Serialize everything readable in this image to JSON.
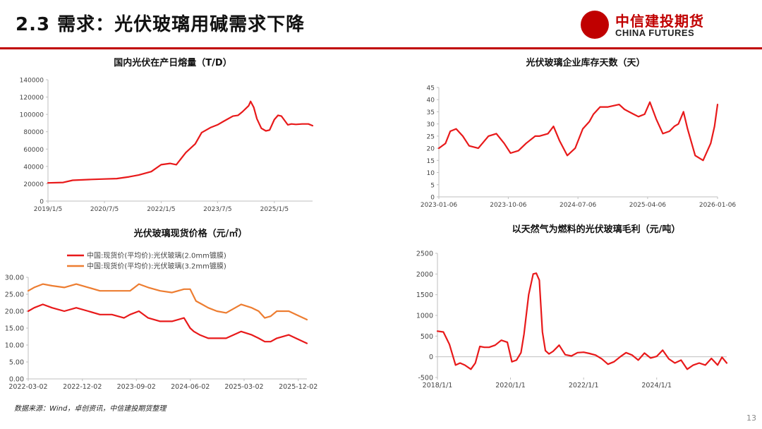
{
  "header": {
    "title": "2.3 需求：光伏玻璃用碱需求下降",
    "logo_cn": "中信建投期货",
    "logo_en": "CHINA FUTURES"
  },
  "colors": {
    "accent": "#c00000",
    "red_line": "#e8191a",
    "orange_line": "#ed7d31"
  },
  "footer": {
    "source": "数据来源：Wind，卓创资讯，中信建投期货整理",
    "page_number": "13"
  },
  "chart_data": [
    {
      "id": "c1",
      "type": "line",
      "title": "国内光伏在产日熔量（T/D）",
      "x_tick_labels": [
        "2019/1/5",
        "2020/7/5",
        "2022/1/5",
        "2023/7/5",
        "2025/1/5"
      ],
      "x_tick_dates": [
        "2019-01-05",
        "2020-07-05",
        "2022-01-05",
        "2023-07-05",
        "2025-01-05"
      ],
      "x_range": [
        "2019-01-05",
        "2026-01-10"
      ],
      "ylim": [
        0,
        140000
      ],
      "y_ticks": [
        0,
        20000,
        40000,
        60000,
        80000,
        100000,
        120000,
        140000
      ],
      "grid": false,
      "series": [
        {
          "color": "#e8191a",
          "x": [
            "2019-01-05",
            "2019-06-01",
            "2019-09-01",
            "2020-03-01",
            "2020-07-01",
            "2020-11-01",
            "2021-03-01",
            "2021-06-01",
            "2021-10-01",
            "2022-01-05",
            "2022-04-01",
            "2022-06-01",
            "2022-09-01",
            "2022-12-01",
            "2023-02-01",
            "2023-05-01",
            "2023-07-05",
            "2023-09-01",
            "2023-12-01",
            "2024-01-20",
            "2024-03-01",
            "2024-05-01",
            "2024-05-20",
            "2024-06-20",
            "2024-07-20",
            "2024-09-01",
            "2024-10-15",
            "2024-11-20",
            "2025-01-05",
            "2025-02-10",
            "2025-03-15",
            "2025-05-15",
            "2025-06-20",
            "2025-08-01",
            "2025-10-01",
            "2025-12-01",
            "2026-01-10"
          ],
          "y": [
            21000,
            21500,
            24000,
            25000,
            25500,
            26000,
            28000,
            30000,
            34000,
            42000,
            43500,
            42000,
            56000,
            66000,
            79000,
            85000,
            88000,
            92000,
            98000,
            99000,
            103000,
            110000,
            115000,
            108000,
            95000,
            84000,
            81000,
            82000,
            94000,
            99000,
            98000,
            88000,
            89000,
            88500,
            89000,
            89000,
            87000
          ]
        }
      ]
    },
    {
      "id": "c2",
      "type": "line",
      "title": "光伏玻璃企业库存天数（天）",
      "x_tick_labels": [
        "2023-01-06",
        "2023-10-06",
        "2024-07-06",
        "2025-04-06",
        "2026-01-06"
      ],
      "x_tick_dates": [
        "2023-01-06",
        "2023-10-06",
        "2024-07-06",
        "2025-04-06",
        "2026-01-06"
      ],
      "x_range": [
        "2023-01-06",
        "2026-01-06"
      ],
      "ylim": [
        0,
        45
      ],
      "y_ticks": [
        0,
        5,
        10,
        15,
        20,
        25,
        30,
        35,
        40,
        45
      ],
      "grid": false,
      "series": [
        {
          "color": "#e8191a",
          "x": [
            "2023-01-06",
            "2023-02-01",
            "2023-02-20",
            "2023-03-15",
            "2023-04-10",
            "2023-05-05",
            "2023-06-10",
            "2023-07-20",
            "2023-08-20",
            "2023-09-20",
            "2023-10-15",
            "2023-11-15",
            "2023-12-15",
            "2024-01-20",
            "2024-02-05",
            "2024-03-10",
            "2024-04-01",
            "2024-04-25",
            "2024-05-25",
            "2024-06-25",
            "2024-07-25",
            "2024-08-20",
            "2024-09-05",
            "2024-10-01",
            "2024-11-01",
            "2024-12-15",
            "2025-01-05",
            "2025-02-10",
            "2025-03-01",
            "2025-03-25",
            "2025-04-15",
            "2025-05-10",
            "2025-06-05",
            "2025-07-01",
            "2025-07-20",
            "2025-08-05",
            "2025-08-25",
            "2025-09-10",
            "2025-10-10",
            "2025-11-10",
            "2025-12-10",
            "2025-12-25",
            "2026-01-06"
          ],
          "y": [
            20,
            22,
            27,
            28,
            25,
            21,
            20,
            25,
            26,
            22,
            18,
            19,
            22,
            25,
            25,
            26,
            29,
            23,
            17,
            20,
            28,
            31,
            34,
            37,
            37,
            38,
            36,
            34,
            33,
            34,
            39,
            32,
            26,
            27,
            29,
            30,
            35,
            28,
            17,
            15,
            22,
            29,
            38
          ]
        }
      ]
    },
    {
      "id": "c3",
      "type": "line",
      "title": "光伏玻璃现货价格（元/㎡）",
      "x_tick_labels": [
        "2022-03-02",
        "2022-12-02",
        "2023-09-02",
        "2024-06-02",
        "2025-03-02",
        "2025-12-02"
      ],
      "x_tick_dates": [
        "2022-03-02",
        "2022-12-02",
        "2023-09-02",
        "2024-06-02",
        "2025-03-02",
        "2025-12-02"
      ],
      "x_range": [
        "2022-03-02",
        "2026-01-15"
      ],
      "ylim": [
        0,
        30
      ],
      "y_ticks": [
        0,
        5,
        10,
        15,
        20,
        25,
        30
      ],
      "y_tick_labels": [
        "0.00",
        "5.00",
        "10.00",
        "15.00",
        "20.00",
        "25.00",
        "30.00"
      ],
      "grid": false,
      "legend_position": "top-left",
      "series": [
        {
          "name": "中国:现货价(平均价):光伏玻璃(2.0mm镀膜)",
          "color": "#e8191a",
          "x": [
            "2022-03-02",
            "2022-04-01",
            "2022-05-15",
            "2022-07-01",
            "2022-09-01",
            "2022-11-01",
            "2023-01-01",
            "2023-03-01",
            "2023-05-01",
            "2023-07-01",
            "2023-08-01",
            "2023-09-15",
            "2023-11-01",
            "2024-01-01",
            "2024-03-01",
            "2024-05-01",
            "2024-06-01",
            "2024-06-20",
            "2024-07-20",
            "2024-09-01",
            "2024-10-15",
            "2024-12-01",
            "2025-02-15",
            "2025-04-10",
            "2025-05-15",
            "2025-06-15",
            "2025-07-15",
            "2025-08-15",
            "2025-10-15",
            "2025-11-20",
            "2026-01-15"
          ],
          "y": [
            20,
            21,
            22,
            21,
            20,
            21,
            20,
            19,
            19,
            18,
            19,
            20,
            18,
            17,
            17,
            18,
            15,
            14,
            13,
            12,
            12,
            12,
            14,
            13,
            12,
            11,
            11,
            12,
            13,
            12,
            10.5
          ]
        },
        {
          "name": "中国:现货价(平均价):光伏玻璃(3.2mm镀膜)",
          "color": "#ed7d31",
          "x": [
            "2022-03-02",
            "2022-04-01",
            "2022-05-15",
            "2022-07-01",
            "2022-09-01",
            "2022-11-01",
            "2023-01-01",
            "2023-03-01",
            "2023-05-01",
            "2023-07-01",
            "2023-08-01",
            "2023-09-15",
            "2023-11-01",
            "2024-01-01",
            "2024-03-01",
            "2024-05-01",
            "2024-06-01",
            "2024-07-01",
            "2024-08-01",
            "2024-09-01",
            "2024-10-15",
            "2024-12-01",
            "2025-02-15",
            "2025-04-10",
            "2025-05-15",
            "2025-06-15",
            "2025-07-15",
            "2025-08-15",
            "2025-10-15",
            "2025-11-20",
            "2026-01-15"
          ],
          "y": [
            26,
            27,
            28,
            27.5,
            27,
            28,
            27,
            26,
            26,
            26,
            26,
            28,
            27,
            26,
            25.5,
            26.5,
            26.5,
            23,
            22,
            21,
            20,
            19.5,
            22,
            21,
            20,
            18,
            18.5,
            20,
            20,
            19,
            17.5
          ]
        }
      ]
    },
    {
      "id": "c4",
      "type": "line",
      "title": "以天然气为燃料的光伏玻璃毛利（元/吨）",
      "x_tick_labels": [
        "2018/1/1",
        "2020/1/1",
        "2022/1/1",
        "2024/1/1"
      ],
      "x_tick_dates": [
        "2018-01-01",
        "2020-01-01",
        "2022-01-01",
        "2024-01-01"
      ],
      "x_range": [
        "2018-01-01",
        "2025-12-01"
      ],
      "ylim": [
        -500,
        2500
      ],
      "y_ticks": [
        -500,
        0,
        500,
        1000,
        1500,
        2000,
        2500
      ],
      "grid": false,
      "series": [
        {
          "color": "#e8191a",
          "x": [
            "2018-01-01",
            "2018-03-01",
            "2018-05-01",
            "2018-07-01",
            "2018-08-15",
            "2018-10-01",
            "2018-12-01",
            "2019-01-15",
            "2019-03-01",
            "2019-04-15",
            "2019-06-01",
            "2019-08-01",
            "2019-10-01",
            "2019-12-01",
            "2020-01-15",
            "2020-03-01",
            "2020-04-15",
            "2020-05-15",
            "2020-07-01",
            "2020-08-15",
            "2020-09-15",
            "2020-10-15",
            "2020-11-15",
            "2020-12-15",
            "2021-01-20",
            "2021-03-01",
            "2021-05-01",
            "2021-07-01",
            "2021-09-01",
            "2021-11-01",
            "2022-01-01",
            "2022-03-01",
            "2022-05-01",
            "2022-07-01",
            "2022-09-01",
            "2022-11-01",
            "2023-01-01",
            "2023-03-01",
            "2023-05-01",
            "2023-07-01",
            "2023-09-01",
            "2023-11-01",
            "2024-01-01",
            "2024-03-01",
            "2024-05-01",
            "2024-07-01",
            "2024-09-01",
            "2024-11-01",
            "2025-01-01",
            "2025-03-01",
            "2025-05-01",
            "2025-07-01",
            "2025-09-01",
            "2025-10-15",
            "2025-12-01"
          ],
          "y": [
            620,
            600,
            300,
            -200,
            -150,
            -200,
            -300,
            -150,
            250,
            230,
            230,
            280,
            400,
            350,
            -120,
            -80,
            100,
            550,
            1500,
            2000,
            2020,
            1850,
            600,
            150,
            70,
            130,
            280,
            50,
            20,
            100,
            110,
            80,
            40,
            -50,
            -180,
            -120,
            0,
            100,
            40,
            -80,
            90,
            -30,
            10,
            160,
            -50,
            -150,
            -80,
            -300,
            -200,
            -150,
            -200,
            -40,
            -200,
            -10,
            -150
          ]
        }
      ]
    }
  ]
}
